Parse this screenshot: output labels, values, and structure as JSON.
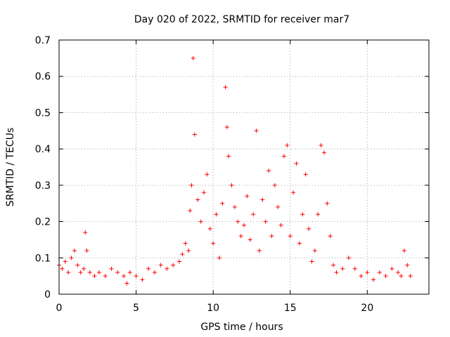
{
  "chart_data": {
    "type": "scatter",
    "title": "Day 020 of 2022, SRMTID for receiver mar7",
    "xlabel": "GPS time / hours",
    "ylabel": "SRMTID / TECUs",
    "xlim": [
      0,
      24
    ],
    "ylim": [
      0,
      0.7
    ],
    "xticks": [
      0,
      5,
      10,
      15,
      20
    ],
    "xtick_labels": [
      "0",
      "5",
      "10",
      "15",
      "20"
    ],
    "yticks": [
      0,
      0.1,
      0.2,
      0.3,
      0.4,
      0.5,
      0.6,
      0.7
    ],
    "ytick_labels": [
      "0",
      "0.1",
      "0.2",
      "0.3",
      "0.4",
      "0.5",
      "0.6",
      "0.7"
    ],
    "grid": true,
    "marker": "+",
    "color": "#ff0000",
    "series": [
      {
        "name": "SRMTID",
        "x": [
          0.0,
          0.2,
          0.4,
          0.6,
          0.8,
          1.0,
          1.2,
          1.4,
          1.6,
          1.7,
          1.8,
          2.0,
          2.3,
          2.6,
          3.0,
          3.4,
          3.8,
          4.2,
          4.4,
          4.6,
          5.0,
          5.4,
          5.8,
          6.2,
          6.6,
          7.0,
          7.4,
          7.8,
          8.0,
          8.2,
          8.4,
          8.5,
          8.6,
          8.7,
          8.8,
          9.0,
          9.2,
          9.4,
          9.6,
          9.8,
          10.0,
          10.2,
          10.4,
          10.6,
          10.8,
          10.9,
          11.0,
          11.2,
          11.4,
          11.6,
          11.8,
          12.0,
          12.2,
          12.4,
          12.6,
          12.8,
          13.0,
          13.2,
          13.4,
          13.6,
          13.8,
          14.0,
          14.2,
          14.4,
          14.6,
          14.8,
          15.0,
          15.2,
          15.4,
          15.6,
          15.8,
          16.0,
          16.2,
          16.4,
          16.6,
          16.8,
          17.0,
          17.2,
          17.4,
          17.6,
          17.8,
          18.0,
          18.4,
          18.8,
          19.2,
          19.6,
          20.0,
          20.4,
          20.8,
          21.2,
          21.6,
          22.0,
          22.2,
          22.4,
          22.6,
          22.8
        ],
        "y": [
          0.08,
          0.07,
          0.09,
          0.06,
          0.1,
          0.12,
          0.08,
          0.06,
          0.07,
          0.17,
          0.12,
          0.06,
          0.05,
          0.06,
          0.05,
          0.07,
          0.06,
          0.05,
          0.03,
          0.06,
          0.05,
          0.04,
          0.07,
          0.06,
          0.08,
          0.07,
          0.08,
          0.09,
          0.11,
          0.14,
          0.12,
          0.23,
          0.3,
          0.65,
          0.44,
          0.26,
          0.2,
          0.28,
          0.33,
          0.18,
          0.14,
          0.22,
          0.1,
          0.25,
          0.57,
          0.46,
          0.38,
          0.3,
          0.24,
          0.2,
          0.16,
          0.19,
          0.27,
          0.15,
          0.22,
          0.45,
          0.12,
          0.26,
          0.2,
          0.34,
          0.16,
          0.3,
          0.24,
          0.19,
          0.38,
          0.41,
          0.16,
          0.28,
          0.36,
          0.14,
          0.22,
          0.33,
          0.18,
          0.09,
          0.12,
          0.22,
          0.41,
          0.39,
          0.25,
          0.16,
          0.08,
          0.06,
          0.07,
          0.1,
          0.07,
          0.05,
          0.06,
          0.04,
          0.06,
          0.05,
          0.07,
          0.06,
          0.05,
          0.12,
          0.08,
          0.05
        ]
      }
    ]
  }
}
